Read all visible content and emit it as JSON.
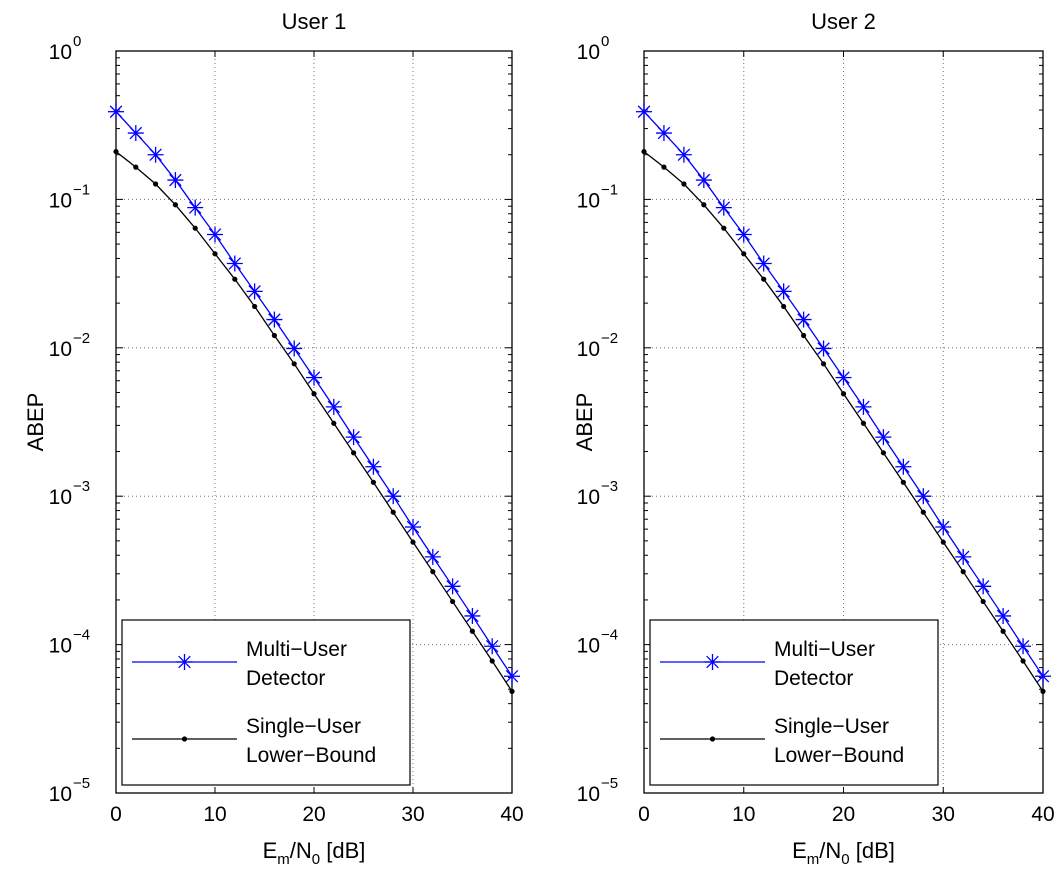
{
  "chart_data": [
    {
      "type": "line",
      "title": "User 1",
      "xlabel": {
        "main": "E",
        "sub1": "m",
        "mid": "/N",
        "sub2": "0",
        "tail": " [dB]"
      },
      "ylabel": "ABEP",
      "xlim": [
        0,
        40
      ],
      "ylim": [
        1e-05,
        1
      ],
      "yscale": "log",
      "xticks": [
        "0",
        "10",
        "20",
        "30",
        "40"
      ],
      "yticks": [
        {
          "base": "10",
          "exp": "0"
        },
        {
          "base": "10",
          "exp": "−1"
        },
        {
          "base": "10",
          "exp": "−2"
        },
        {
          "base": "10",
          "exp": "−3"
        },
        {
          "base": "10",
          "exp": "−4"
        },
        {
          "base": "10",
          "exp": "−5"
        }
      ],
      "grid": true,
      "legend_position": "bottom-left",
      "series": [
        {
          "name": [
            "Multi−User",
            "Detector"
          ],
          "color": "#0000ff",
          "marker": "asterisk",
          "x": [
            0,
            2,
            4,
            6,
            8,
            10,
            12,
            14,
            16,
            18,
            20,
            22,
            24,
            26,
            28,
            30,
            32,
            34,
            36,
            38,
            40
          ],
          "y": [
            0.39,
            0.28,
            0.2,
            0.135,
            0.088,
            0.058,
            0.037,
            0.024,
            0.0155,
            0.0099,
            0.0063,
            0.004,
            0.0025,
            0.00158,
            0.001,
            0.00062,
            0.00039,
            0.000247,
            0.000156,
            9.75e-05,
            6.12e-05
          ]
        },
        {
          "name": [
            "Single−User",
            "Lower−Bound"
          ],
          "color": "#000000",
          "marker": "dot",
          "x": [
            0,
            2,
            4,
            6,
            8,
            10,
            12,
            14,
            16,
            18,
            20,
            22,
            24,
            26,
            28,
            30,
            32,
            34,
            36,
            38,
            40
          ],
          "y": [
            0.21,
            0.165,
            0.127,
            0.092,
            0.064,
            0.043,
            0.029,
            0.019,
            0.0121,
            0.0078,
            0.0049,
            0.0031,
            0.00196,
            0.00124,
            0.00078,
            0.00049,
            0.00031,
            0.000195,
            0.000123,
            7.75e-05,
            4.84e-05
          ]
        }
      ]
    },
    {
      "type": "line",
      "title": "User 2",
      "xlabel": {
        "main": "E",
        "sub1": "m",
        "mid": "/N",
        "sub2": "0",
        "tail": " [dB]"
      },
      "ylabel": "ABEP",
      "xlim": [
        0,
        40
      ],
      "ylim": [
        1e-05,
        1
      ],
      "yscale": "log",
      "xticks": [
        "0",
        "10",
        "20",
        "30",
        "40"
      ],
      "yticks": [
        {
          "base": "10",
          "exp": "0"
        },
        {
          "base": "10",
          "exp": "−1"
        },
        {
          "base": "10",
          "exp": "−2"
        },
        {
          "base": "10",
          "exp": "−3"
        },
        {
          "base": "10",
          "exp": "−4"
        },
        {
          "base": "10",
          "exp": "−5"
        }
      ],
      "grid": true,
      "legend_position": "bottom-left",
      "series": [
        {
          "name": [
            "Multi−User",
            "Detector"
          ],
          "color": "#0000ff",
          "marker": "asterisk",
          "x": [
            0,
            2,
            4,
            6,
            8,
            10,
            12,
            14,
            16,
            18,
            20,
            22,
            24,
            26,
            28,
            30,
            32,
            34,
            36,
            38,
            40
          ],
          "y": [
            0.39,
            0.28,
            0.2,
            0.135,
            0.088,
            0.058,
            0.037,
            0.024,
            0.0155,
            0.0099,
            0.0063,
            0.004,
            0.0025,
            0.00158,
            0.001,
            0.00062,
            0.00039,
            0.000247,
            0.000156,
            9.75e-05,
            6.12e-05
          ]
        },
        {
          "name": [
            "Single−User",
            "Lower−Bound"
          ],
          "color": "#000000",
          "marker": "dot",
          "x": [
            0,
            2,
            4,
            6,
            8,
            10,
            12,
            14,
            16,
            18,
            20,
            22,
            24,
            26,
            28,
            30,
            32,
            34,
            36,
            38,
            40
          ],
          "y": [
            0.21,
            0.165,
            0.127,
            0.092,
            0.064,
            0.043,
            0.029,
            0.019,
            0.0121,
            0.0078,
            0.0049,
            0.0031,
            0.00196,
            0.00124,
            0.00078,
            0.00049,
            0.00031,
            0.000195,
            0.000123,
            7.75e-05,
            4.84e-05
          ]
        }
      ]
    }
  ]
}
